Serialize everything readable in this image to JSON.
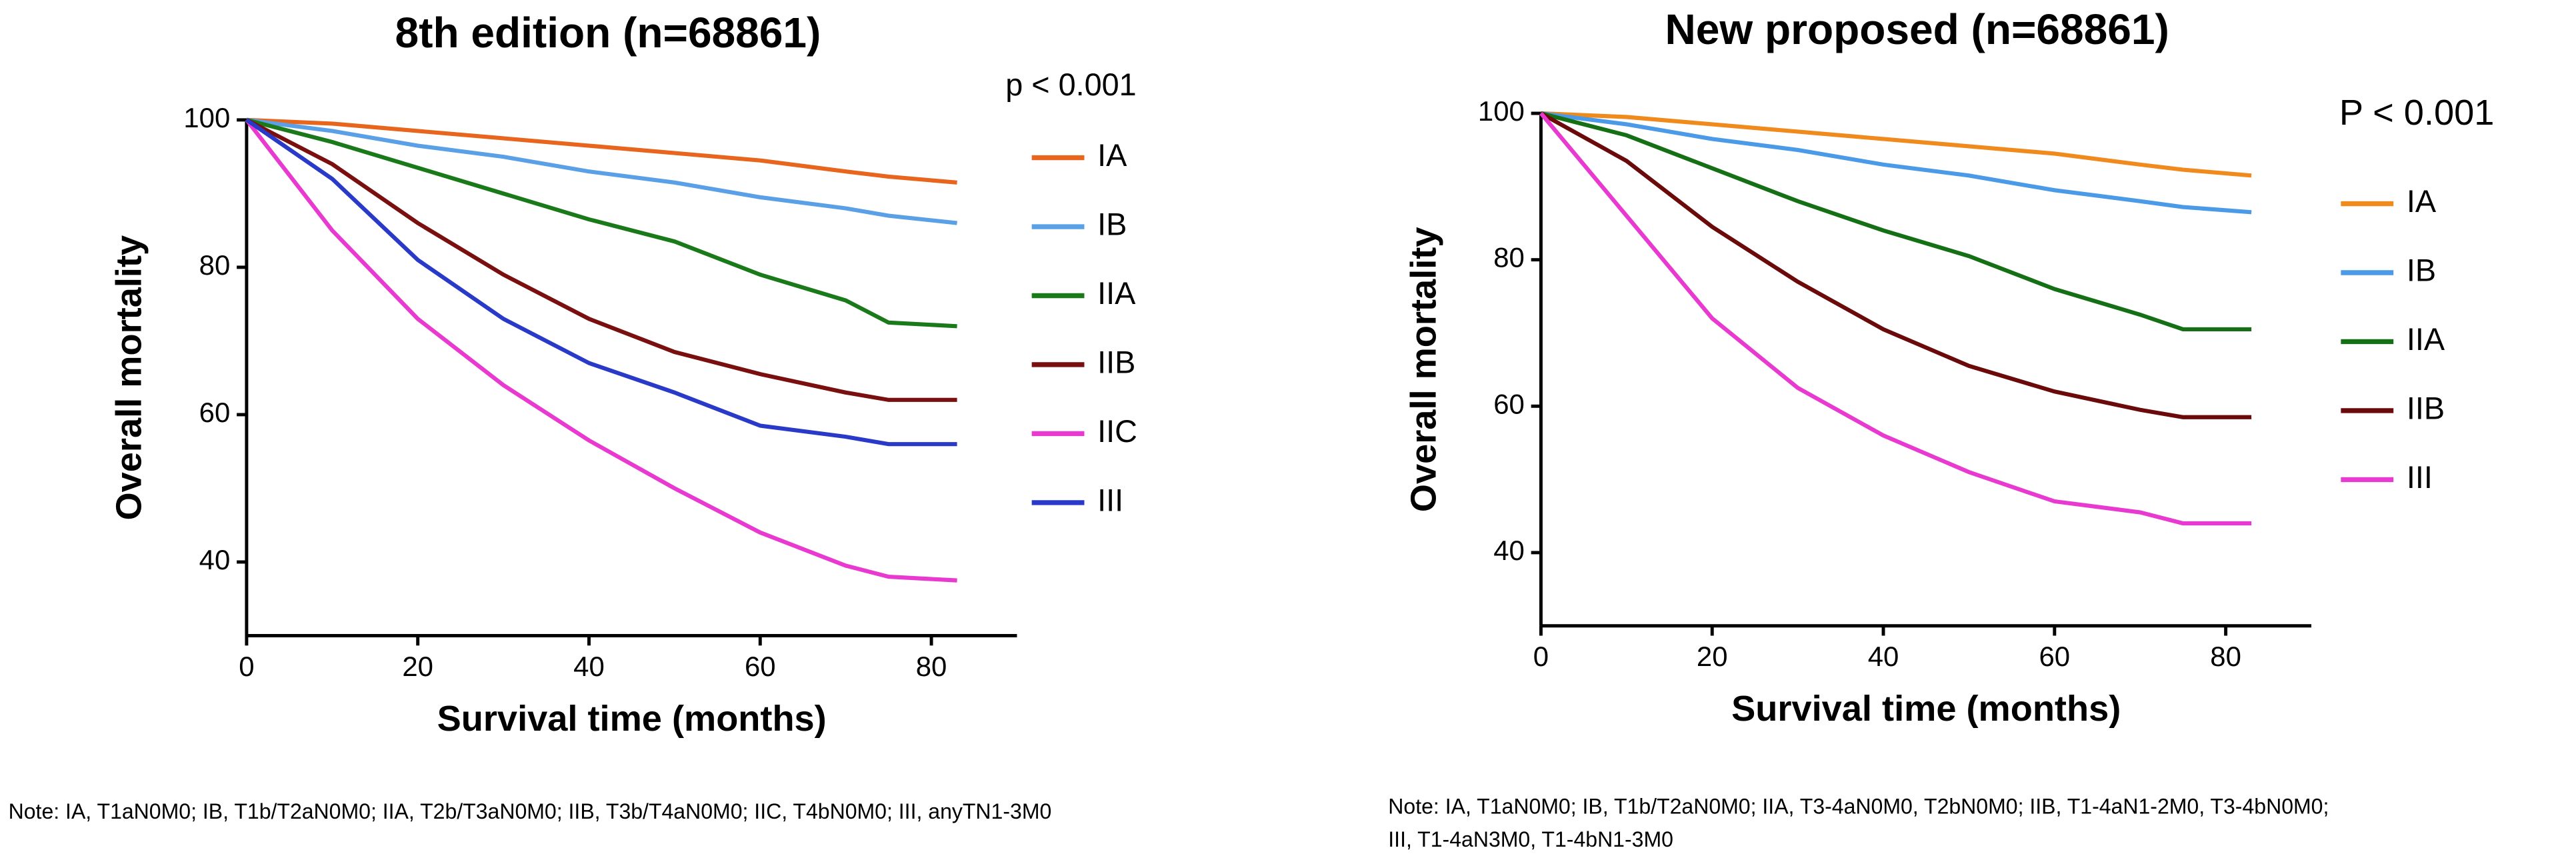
{
  "chart_data": [
    {
      "type": "line",
      "title": "8th edition (n=68861)",
      "annotation": "p < 0.001",
      "x_label": "Survival time (months)",
      "y_label": "Overall mortality",
      "xlim": [
        0,
        90
      ],
      "xticks": [
        0,
        20,
        40,
        60,
        80
      ],
      "ylim": [
        30,
        100
      ],
      "yticks": [
        40,
        60,
        80,
        100
      ],
      "note": [
        "Note: IA, T1aN0M0; IB, T1b/T2aN0M0; IIA, T2b/T3aN0M0;  IIB, T3b/T4aN0M0; IIC, T4bN0M0; III, anyTN1-3M0"
      ],
      "x": [
        0,
        10,
        20,
        30,
        40,
        50,
        60,
        70,
        75,
        83
      ],
      "series": [
        {
          "name": "IA",
          "color": "#e8651e",
          "values": [
            100,
            99.5,
            98.5,
            97.5,
            96.5,
            95.5,
            94.5,
            93,
            92.3,
            91.5
          ]
        },
        {
          "name": "IB",
          "color": "#5aa0e6",
          "values": [
            100,
            98.5,
            96.5,
            95,
            93,
            91.5,
            89.5,
            88,
            87,
            86
          ]
        },
        {
          "name": "IIA",
          "color": "#1a7a1a",
          "values": [
            100,
            97,
            93.5,
            90,
            86.5,
            83.5,
            79,
            75.5,
            72.5,
            72
          ]
        },
        {
          "name": "IIB",
          "color": "#7a0f0f",
          "values": [
            100,
            94,
            86,
            79,
            73,
            68.5,
            65.5,
            63,
            62,
            62
          ]
        },
        {
          "name": "IIC",
          "color": "#e83ad0",
          "values": [
            100,
            85,
            73,
            64,
            56.5,
            50,
            44,
            39.5,
            38,
            37.5
          ]
        },
        {
          "name": "III",
          "color": "#2a3ac8",
          "values": [
            100,
            92,
            81,
            73,
            67,
            63,
            58.5,
            57,
            56,
            56
          ]
        }
      ]
    },
    {
      "type": "line",
      "title": "New proposed (n=68861)",
      "annotation": "P < 0.001",
      "x_label": "Survival time (months)",
      "y_label": "Overall mortality",
      "xlim": [
        0,
        90
      ],
      "xticks": [
        0,
        20,
        40,
        60,
        80
      ],
      "ylim": [
        30,
        100
      ],
      "yticks": [
        40,
        60,
        80,
        100
      ],
      "note": [
        "Note: IA, T1aN0M0; IB, T1b/T2aN0M0; IIA, T3-4aN0M0, T2bN0M0; IIB, T1-4aN1-2M0, T3-4bN0M0;",
        "III, T1-4aN3M0, T1-4bN1-3M0"
      ],
      "x": [
        0,
        10,
        20,
        30,
        40,
        50,
        60,
        70,
        75,
        83
      ],
      "series": [
        {
          "name": "IA",
          "color": "#f08a1c",
          "values": [
            100,
            99.5,
            98.5,
            97.5,
            96.5,
            95.5,
            94.5,
            93,
            92.3,
            91.5
          ]
        },
        {
          "name": "IB",
          "color": "#4a9ae8",
          "values": [
            100,
            98.5,
            96.5,
            95,
            93,
            91.5,
            89.5,
            88,
            87.2,
            86.5
          ]
        },
        {
          "name": "IIA",
          "color": "#157015",
          "values": [
            100,
            97,
            92.5,
            88,
            84,
            80.5,
            76,
            72.5,
            70.5,
            70.5
          ]
        },
        {
          "name": "IIB",
          "color": "#6a0a0a",
          "values": [
            100,
            93.5,
            84.5,
            77,
            70.5,
            65.5,
            62,
            59.5,
            58.5,
            58.5
          ]
        },
        {
          "name": "III",
          "color": "#e83ad0",
          "values": [
            100,
            86,
            72,
            62.5,
            56,
            51,
            47,
            45.5,
            44,
            44
          ]
        }
      ]
    }
  ]
}
